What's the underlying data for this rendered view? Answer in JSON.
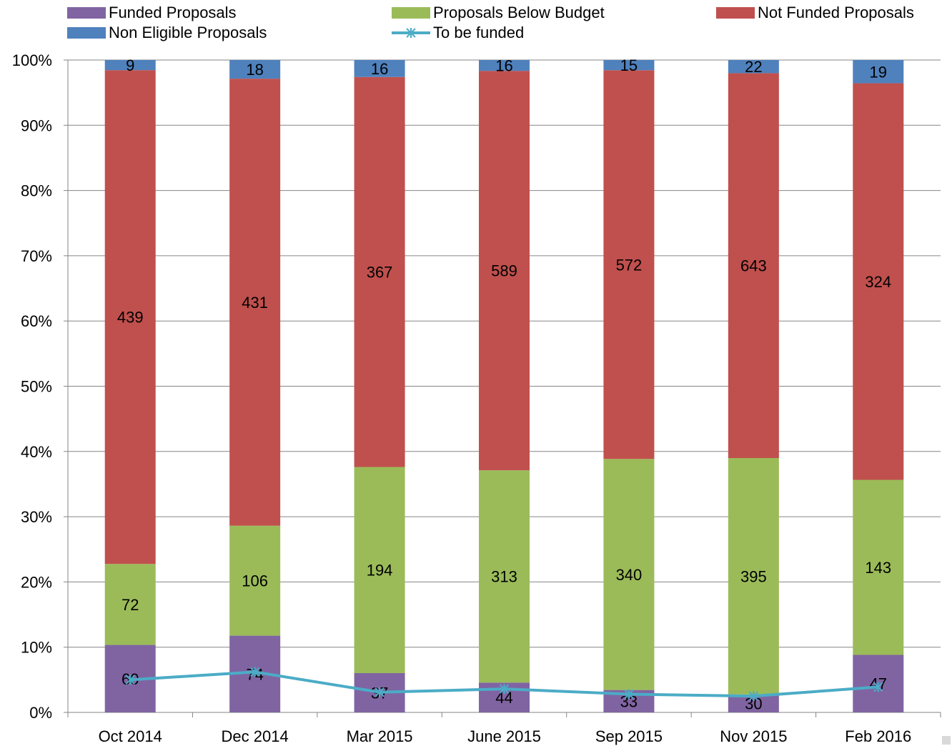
{
  "chart_data": {
    "type": "bar",
    "stacked": "percent",
    "categories": [
      "Oct 2014",
      "Dec 2014",
      "Mar 2015",
      "June 2015",
      "Sep 2015",
      "Nov 2015",
      "Feb 2016"
    ],
    "series": [
      {
        "name": "Funded Proposals",
        "color": "#8064A2",
        "values": [
          60,
          74,
          37,
          44,
          33,
          30,
          47
        ]
      },
      {
        "name": "Proposals Below Budget",
        "color": "#9BBB59",
        "values": [
          72,
          106,
          194,
          313,
          340,
          395,
          143
        ]
      },
      {
        "name": "Not Funded Proposals",
        "color": "#C0504D",
        "values": [
          439,
          431,
          367,
          589,
          572,
          643,
          324
        ]
      },
      {
        "name": "Non Eligible Proposals",
        "color": "#4F81BD",
        "values": [
          9,
          18,
          16,
          16,
          15,
          22,
          19
        ]
      }
    ],
    "line": {
      "name": "To be funded",
      "color": "#4BACC6",
      "marker": "asterisk",
      "values": [
        0.05,
        0.062,
        0.031,
        0.036,
        0.028,
        0.025,
        0.039
      ]
    },
    "yaxis": {
      "ticks": [
        "0%",
        "10%",
        "20%",
        "30%",
        "40%",
        "50%",
        "60%",
        "70%",
        "80%",
        "90%",
        "100%"
      ],
      "ylim": [
        0,
        1
      ]
    },
    "legend_position": "top",
    "grid": true,
    "title": "",
    "xlabel": "",
    "ylabel": ""
  }
}
